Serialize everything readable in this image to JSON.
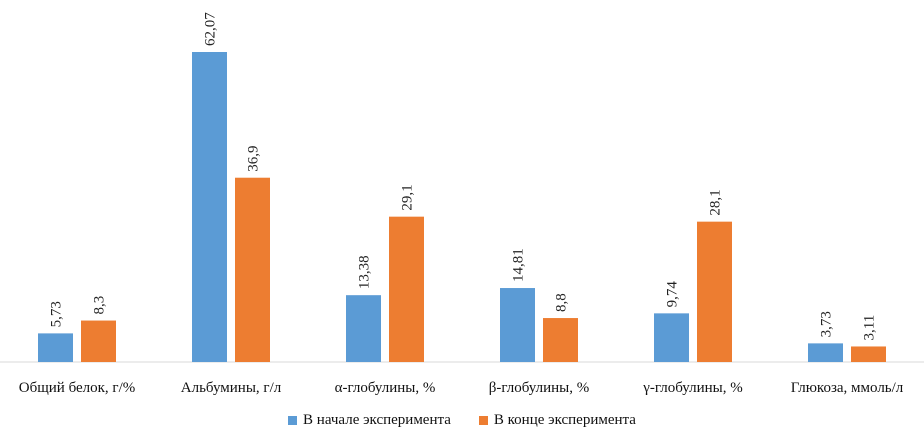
{
  "chart_data": {
    "type": "bar",
    "categories": [
      "Общий белок, г/%",
      "Альбумины, г/л",
      "α-глобулины, %",
      "β-глобулины, %",
      "γ-глобулины, %",
      "Глюкоза, ммоль/л"
    ],
    "series": [
      {
        "name": "В начале эксперимента",
        "color": "#5B9BD5",
        "values": [
          5.73,
          62.07,
          13.38,
          14.81,
          9.74,
          3.73
        ],
        "labels": [
          "5,73",
          "62,07",
          "13,38",
          "14,81",
          "9,74",
          "3,73"
        ]
      },
      {
        "name": "В конце эксперимента",
        "color": "#ED7D31",
        "values": [
          8.3,
          36.9,
          29.1,
          8.8,
          28.1,
          3.11
        ],
        "labels": [
          "8,3",
          "36,9",
          "29,1",
          "8,8",
          "28,1",
          "3,11"
        ]
      }
    ],
    "ylim": [
      0,
      62.07
    ],
    "grid": false,
    "legend_position": "bottom"
  }
}
